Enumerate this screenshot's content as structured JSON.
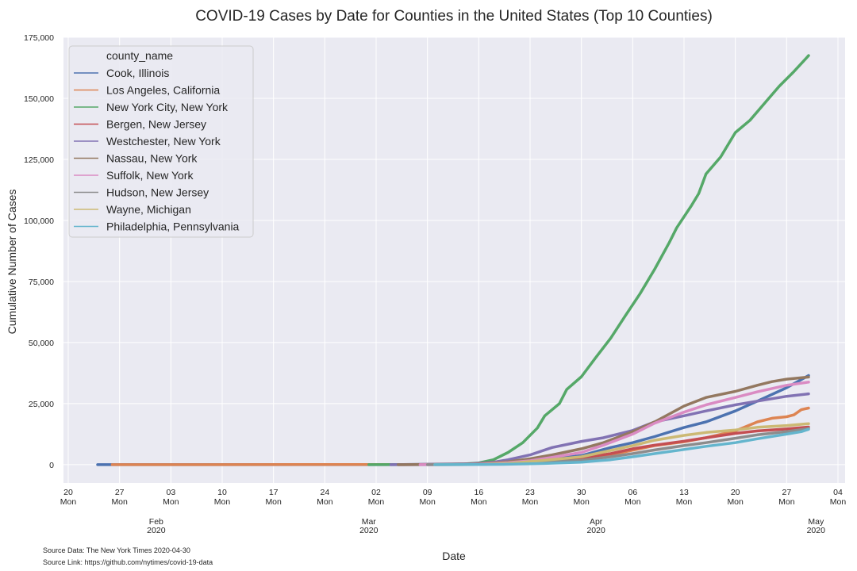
{
  "source_data": "Source Data: The New York Times 2020-04-30",
  "source_link": "Source Link: https://github.com/nytimes/covid-19-data",
  "chart_data": {
    "type": "line",
    "title": "COVID-19 Cases by Date for Counties in the United States (Top 10 Counties)",
    "xlabel": "Date",
    "ylabel": "Cumulative Number of Cases",
    "xlim": [
      "2020-01-20",
      "2020-05-04"
    ],
    "ylim": [
      -7500,
      175000
    ],
    "y_ticks": [
      0,
      25000,
      50000,
      75000,
      100000,
      125000,
      150000,
      175000
    ],
    "y_tick_labels": [
      "0",
      "25,000",
      "50,000",
      "75,000",
      "100,000",
      "125,000",
      "150,000",
      "175,000"
    ],
    "x_ticks": [
      {
        "date": "2020-01-20",
        "day": "20",
        "weekday": "Mon"
      },
      {
        "date": "2020-01-27",
        "day": "27",
        "weekday": "Mon"
      },
      {
        "date": "2020-02-03",
        "day": "03",
        "weekday": "Mon"
      },
      {
        "date": "2020-02-10",
        "day": "10",
        "weekday": "Mon"
      },
      {
        "date": "2020-02-17",
        "day": "17",
        "weekday": "Mon"
      },
      {
        "date": "2020-02-24",
        "day": "24",
        "weekday": "Mon"
      },
      {
        "date": "2020-03-02",
        "day": "02",
        "weekday": "Mon"
      },
      {
        "date": "2020-03-09",
        "day": "09",
        "weekday": "Mon"
      },
      {
        "date": "2020-03-16",
        "day": "16",
        "weekday": "Mon"
      },
      {
        "date": "2020-03-23",
        "day": "23",
        "weekday": "Mon"
      },
      {
        "date": "2020-03-30",
        "day": "30",
        "weekday": "Mon"
      },
      {
        "date": "2020-04-06",
        "day": "06",
        "weekday": "Mon"
      },
      {
        "date": "2020-04-13",
        "day": "13",
        "weekday": "Mon"
      },
      {
        "date": "2020-04-20",
        "day": "20",
        "weekday": "Mon"
      },
      {
        "date": "2020-04-27",
        "day": "27",
        "weekday": "Mon"
      },
      {
        "date": "2020-05-04",
        "day": "04",
        "weekday": "Mon"
      }
    ],
    "month_ticks": [
      {
        "date": "2020-02-01",
        "month": "Feb",
        "year": "2020"
      },
      {
        "date": "2020-03-01",
        "month": "Mar",
        "year": "2020"
      },
      {
        "date": "2020-04-01",
        "month": "Apr",
        "year": "2020"
      },
      {
        "date": "2020-05-01",
        "month": "May",
        "year": "2020"
      }
    ],
    "grid": true,
    "legend": {
      "title": "county_name",
      "position": "top-left"
    },
    "series": [
      {
        "name": "Cook, Illinois",
        "color": "#4c72b0",
        "points": [
          [
            "2020-01-24",
            0
          ],
          [
            "2020-03-15",
            50
          ],
          [
            "2020-03-20",
            700
          ],
          [
            "2020-03-25",
            2100
          ],
          [
            "2020-03-30",
            3700
          ],
          [
            "2020-04-03",
            7000
          ],
          [
            "2020-04-06",
            9000
          ],
          [
            "2020-04-09",
            11500
          ],
          [
            "2020-04-13",
            15200
          ],
          [
            "2020-04-16",
            17500
          ],
          [
            "2020-04-20",
            22000
          ],
          [
            "2020-04-23",
            26000
          ],
          [
            "2020-04-27",
            31500
          ],
          [
            "2020-04-30",
            36500
          ]
        ]
      },
      {
        "name": "Los Angeles, California",
        "color": "#dd8452",
        "points": [
          [
            "2020-01-26",
            0
          ],
          [
            "2020-03-15",
            80
          ],
          [
            "2020-03-20",
            400
          ],
          [
            "2020-03-25",
            800
          ],
          [
            "2020-03-30",
            2100
          ],
          [
            "2020-04-03",
            4000
          ],
          [
            "2020-04-06",
            5900
          ],
          [
            "2020-04-09",
            7800
          ],
          [
            "2020-04-13",
            9400
          ],
          [
            "2020-04-16",
            11000
          ],
          [
            "2020-04-20",
            13800
          ],
          [
            "2020-04-23",
            17500
          ],
          [
            "2020-04-25",
            19000
          ],
          [
            "2020-04-27",
            19600
          ],
          [
            "2020-04-28",
            20400
          ],
          [
            "2020-04-29",
            22500
          ],
          [
            "2020-04-30",
            23200
          ]
        ]
      },
      {
        "name": "New York City, New York",
        "color": "#55a868",
        "points": [
          [
            "2020-03-01",
            0
          ],
          [
            "2020-03-10",
            100
          ],
          [
            "2020-03-14",
            300
          ],
          [
            "2020-03-16",
            700
          ],
          [
            "2020-03-18",
            2000
          ],
          [
            "2020-03-20",
            5000
          ],
          [
            "2020-03-22",
            9000
          ],
          [
            "2020-03-24",
            15000
          ],
          [
            "2020-03-25",
            20000
          ],
          [
            "2020-03-27",
            25000
          ],
          [
            "2020-03-28",
            30800
          ],
          [
            "2020-03-30",
            36000
          ],
          [
            "2020-04-01",
            44000
          ],
          [
            "2020-04-03",
            51800
          ],
          [
            "2020-04-05",
            61000
          ],
          [
            "2020-04-07",
            70000
          ],
          [
            "2020-04-09",
            80000
          ],
          [
            "2020-04-11",
            91000
          ],
          [
            "2020-04-12",
            97000
          ],
          [
            "2020-04-14",
            106000
          ],
          [
            "2020-04-15",
            111000
          ],
          [
            "2020-04-16",
            119000
          ],
          [
            "2020-04-18",
            126000
          ],
          [
            "2020-04-20",
            136000
          ],
          [
            "2020-04-22",
            141000
          ],
          [
            "2020-04-24",
            148000
          ],
          [
            "2020-04-26",
            155000
          ],
          [
            "2020-04-28",
            161000
          ],
          [
            "2020-04-30",
            167500
          ]
        ]
      },
      {
        "name": "Bergen, New Jersey",
        "color": "#c44e52",
        "points": [
          [
            "2020-03-05",
            0
          ],
          [
            "2020-03-15",
            100
          ],
          [
            "2020-03-20",
            800
          ],
          [
            "2020-03-25",
            1800
          ],
          [
            "2020-03-30",
            2800
          ],
          [
            "2020-04-03",
            4500
          ],
          [
            "2020-04-06",
            6500
          ],
          [
            "2020-04-09",
            8000
          ],
          [
            "2020-04-13",
            9600
          ],
          [
            "2020-04-16",
            11000
          ],
          [
            "2020-04-20",
            12800
          ],
          [
            "2020-04-23",
            13800
          ],
          [
            "2020-04-27",
            14600
          ],
          [
            "2020-04-30",
            15400
          ]
        ]
      },
      {
        "name": "Westchester, New York",
        "color": "#8172b3",
        "points": [
          [
            "2020-03-04",
            0
          ],
          [
            "2020-03-10",
            200
          ],
          [
            "2020-03-15",
            400
          ],
          [
            "2020-03-18",
            1000
          ],
          [
            "2020-03-20",
            2000
          ],
          [
            "2020-03-23",
            4000
          ],
          [
            "2020-03-26",
            7000
          ],
          [
            "2020-03-30",
            9500
          ],
          [
            "2020-04-02",
            11000
          ],
          [
            "2020-04-06",
            14000
          ],
          [
            "2020-04-09",
            17500
          ],
          [
            "2020-04-13",
            20000
          ],
          [
            "2020-04-16",
            22000
          ],
          [
            "2020-04-20",
            24500
          ],
          [
            "2020-04-23",
            26000
          ],
          [
            "2020-04-27",
            28000
          ],
          [
            "2020-04-30",
            29000
          ]
        ]
      },
      {
        "name": "Nassau, New York",
        "color": "#937860",
        "points": [
          [
            "2020-03-05",
            0
          ],
          [
            "2020-03-15",
            200
          ],
          [
            "2020-03-20",
            1200
          ],
          [
            "2020-03-23",
            2400
          ],
          [
            "2020-03-26",
            4000
          ],
          [
            "2020-03-30",
            6500
          ],
          [
            "2020-04-02",
            9000
          ],
          [
            "2020-04-06",
            13500
          ],
          [
            "2020-04-09",
            17500
          ],
          [
            "2020-04-13",
            24000
          ],
          [
            "2020-04-16",
            27500
          ],
          [
            "2020-04-20",
            30000
          ],
          [
            "2020-04-23",
            32500
          ],
          [
            "2020-04-25",
            34000
          ],
          [
            "2020-04-27",
            35000
          ],
          [
            "2020-04-30",
            35900
          ]
        ]
      },
      {
        "name": "Suffolk, New York",
        "color": "#da8bc3",
        "points": [
          [
            "2020-03-08",
            0
          ],
          [
            "2020-03-15",
            100
          ],
          [
            "2020-03-20",
            800
          ],
          [
            "2020-03-23",
            1600
          ],
          [
            "2020-03-26",
            3000
          ],
          [
            "2020-03-30",
            5000
          ],
          [
            "2020-04-02",
            8000
          ],
          [
            "2020-04-06",
            12500
          ],
          [
            "2020-04-09",
            17000
          ],
          [
            "2020-04-13",
            21500
          ],
          [
            "2020-04-16",
            24500
          ],
          [
            "2020-04-20",
            27500
          ],
          [
            "2020-04-23",
            29800
          ],
          [
            "2020-04-27",
            32500
          ],
          [
            "2020-04-30",
            33800
          ]
        ]
      },
      {
        "name": "Hudson, New Jersey",
        "color": "#8c8c8c",
        "points": [
          [
            "2020-03-09",
            0
          ],
          [
            "2020-03-15",
            50
          ],
          [
            "2020-03-20",
            400
          ],
          [
            "2020-03-25",
            1000
          ],
          [
            "2020-03-30",
            1800
          ],
          [
            "2020-04-03",
            3200
          ],
          [
            "2020-04-06",
            4500
          ],
          [
            "2020-04-09",
            6000
          ],
          [
            "2020-04-13",
            7800
          ],
          [
            "2020-04-16",
            9000
          ],
          [
            "2020-04-20",
            10800
          ],
          [
            "2020-04-23",
            12200
          ],
          [
            "2020-04-27",
            13500
          ],
          [
            "2020-04-30",
            14800
          ]
        ]
      },
      {
        "name": "Wayne, Michigan",
        "color": "#ccb974",
        "points": [
          [
            "2020-03-10",
            0
          ],
          [
            "2020-03-16",
            50
          ],
          [
            "2020-03-20",
            500
          ],
          [
            "2020-03-25",
            1800
          ],
          [
            "2020-03-30",
            3200
          ],
          [
            "2020-04-03",
            5800
          ],
          [
            "2020-04-06",
            7800
          ],
          [
            "2020-04-09",
            10000
          ],
          [
            "2020-04-13",
            12000
          ],
          [
            "2020-04-16",
            13200
          ],
          [
            "2020-04-20",
            14200
          ],
          [
            "2020-04-23",
            15300
          ],
          [
            "2020-04-27",
            16000
          ],
          [
            "2020-04-30",
            16800
          ]
        ]
      },
      {
        "name": "Philadelphia, Pennsylvania",
        "color": "#64b5cd",
        "points": [
          [
            "2020-03-10",
            0
          ],
          [
            "2020-03-16",
            30
          ],
          [
            "2020-03-20",
            150
          ],
          [
            "2020-03-25",
            500
          ],
          [
            "2020-03-30",
            1000
          ],
          [
            "2020-04-03",
            2000
          ],
          [
            "2020-04-06",
            3200
          ],
          [
            "2020-04-09",
            4500
          ],
          [
            "2020-04-13",
            6200
          ],
          [
            "2020-04-16",
            7500
          ],
          [
            "2020-04-20",
            9000
          ],
          [
            "2020-04-23",
            10600
          ],
          [
            "2020-04-27",
            12500
          ],
          [
            "2020-04-29",
            13500
          ],
          [
            "2020-04-30",
            14500
          ]
        ]
      }
    ]
  }
}
